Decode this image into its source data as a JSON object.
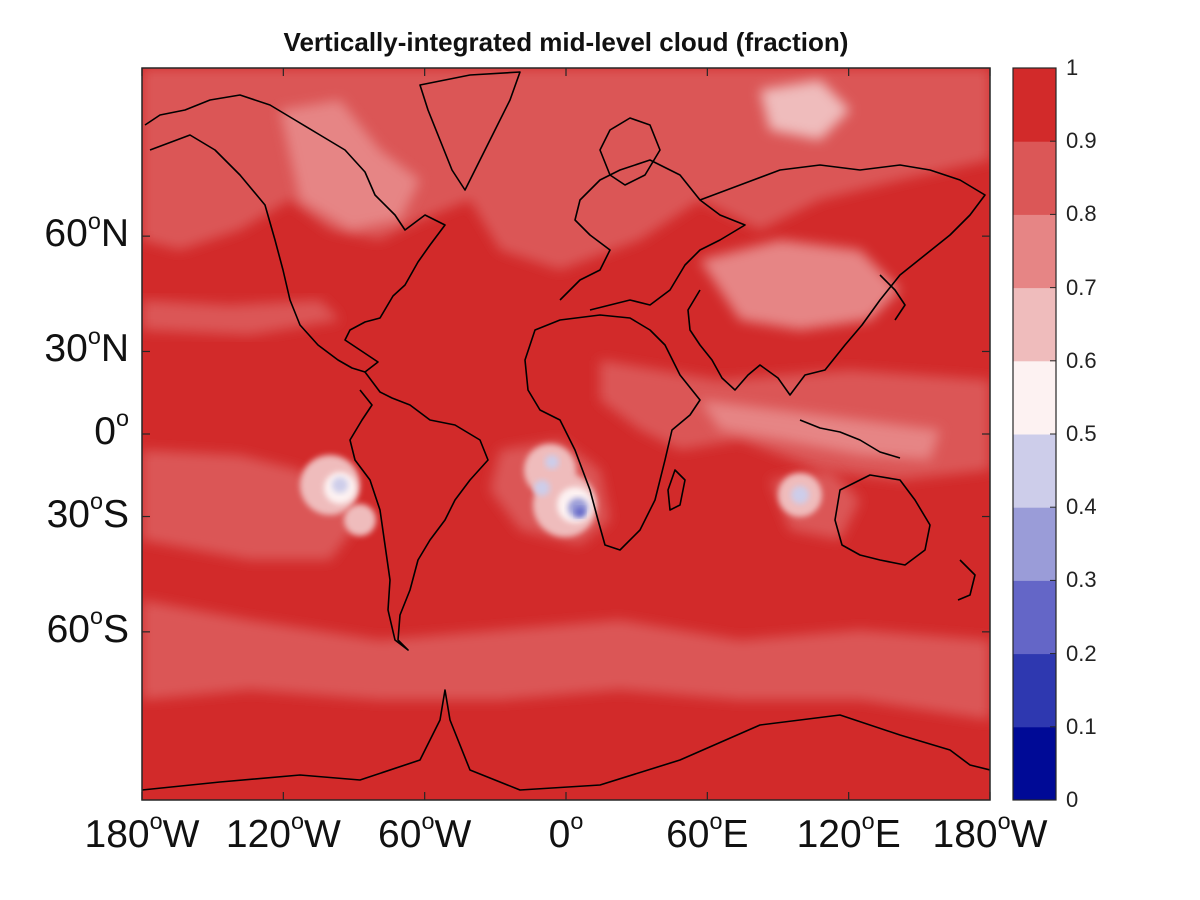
{
  "title": "Vertically-integrated mid-level cloud (fraction)",
  "y_axis": {
    "ticks": [
      {
        "deg": "60",
        "hemi": "N"
      },
      {
        "deg": "30",
        "hemi": "N"
      },
      {
        "deg": "0",
        "hemi": ""
      },
      {
        "deg": "30",
        "hemi": "S"
      },
      {
        "deg": "60",
        "hemi": "S"
      }
    ]
  },
  "x_axis": {
    "ticks": [
      {
        "deg": "180",
        "hemi": "W"
      },
      {
        "deg": "120",
        "hemi": "W"
      },
      {
        "deg": "60",
        "hemi": "W"
      },
      {
        "deg": "0",
        "hemi": ""
      },
      {
        "deg": "60",
        "hemi": "E"
      },
      {
        "deg": "120",
        "hemi": "E"
      },
      {
        "deg": "180",
        "hemi": "W"
      }
    ],
    "degree_symbol": "o"
  },
  "colorbar": {
    "labels": [
      "0",
      "0.1",
      "0.2",
      "0.3",
      "0.4",
      "0.5",
      "0.6",
      "0.7",
      "0.8",
      "0.9",
      "1"
    ],
    "colors": [
      "#000a96",
      "#2e38b0",
      "#6466c7",
      "#9a9cd8",
      "#cdcdea",
      "#fdf2f2",
      "#efbcbc",
      "#e68585",
      "#db5757",
      "#d22a2a"
    ]
  },
  "chart_data": {
    "type": "heatmap",
    "title": "Vertically-integrated mid-level cloud (fraction)",
    "projection": "Mercator",
    "xlim": [
      "180W",
      "180E"
    ],
    "ylim": [
      "80S",
      "80N"
    ],
    "x_ticks": [
      "180W",
      "120W",
      "60W",
      "0",
      "60E",
      "120E",
      "180W"
    ],
    "y_ticks": [
      "60N",
      "30N",
      "0",
      "30S",
      "60S"
    ],
    "color_scale": {
      "min": 0,
      "max": 1,
      "step": 0.1
    },
    "background_value": 0.9,
    "regions": [
      {
        "name": "Arctic / high latitudes",
        "value": 0.8
      },
      {
        "name": "North Pacific stratocumulus edge",
        "value": 0.8
      },
      {
        "name": "Greenland / Canadian Arctic",
        "value": 0.7
      },
      {
        "name": "Central Asia",
        "value": 0.7
      },
      {
        "name": "Southern Ocean belt",
        "value": 0.8
      },
      {
        "name": "Tropical Indian Ocean / Maritime Continent",
        "value": 0.7
      },
      {
        "name": "SE Pacific (off Peru)",
        "value": 0.6,
        "min": 0.4
      },
      {
        "name": "SE Atlantic (off Namibia/Angola)",
        "value": 0.6,
        "min": 0.2
      },
      {
        "name": "SE Indian Ocean (off W Australia)",
        "value": 0.6,
        "min": 0.4
      }
    ]
  }
}
